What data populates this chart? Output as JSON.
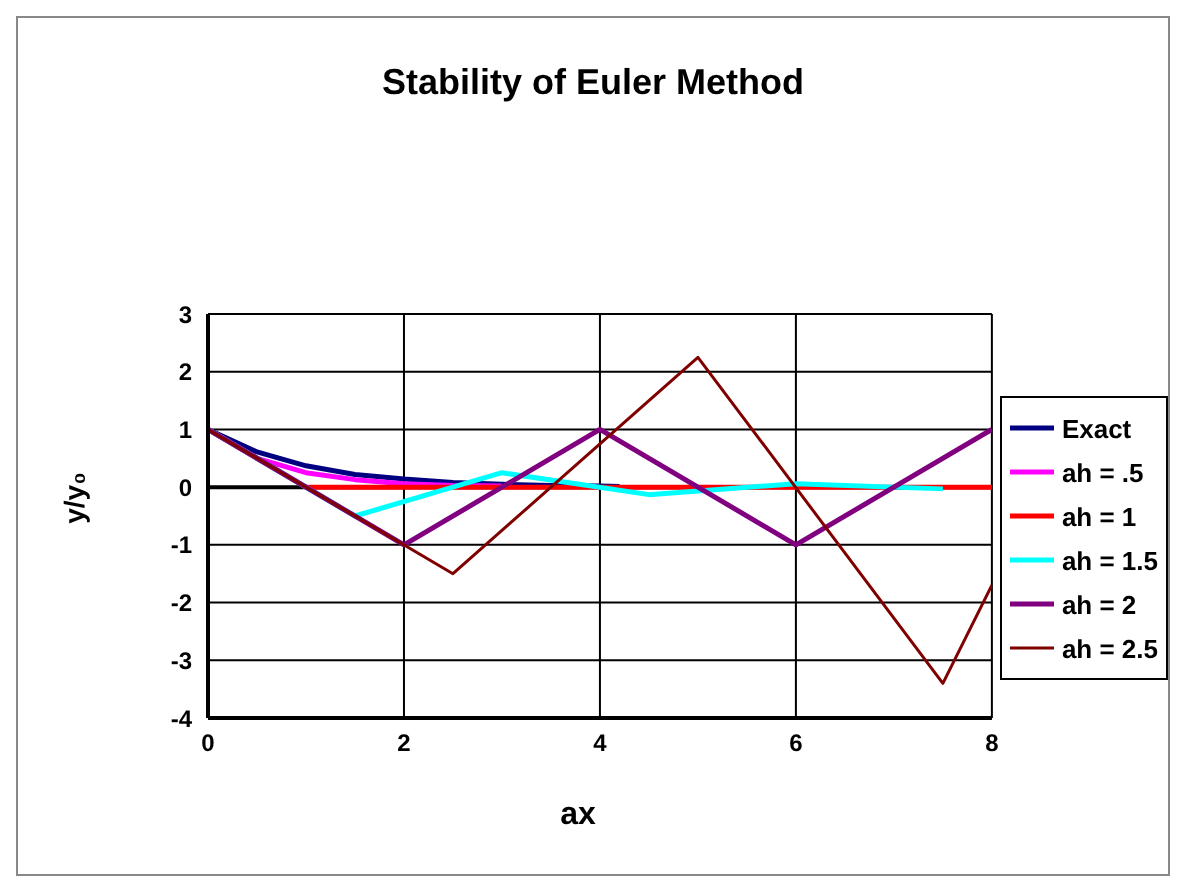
{
  "chart_data": {
    "type": "line",
    "title": "Stability of Euler Method",
    "xlabel": "ax",
    "ylabel": "y/y₀",
    "xlim": [
      0,
      8
    ],
    "xticks": [
      0,
      2,
      4,
      6,
      8
    ],
    "ylim": [
      -4,
      3
    ],
    "yticks": [
      -4,
      -3,
      -2,
      -1,
      0,
      1,
      2,
      3
    ],
    "grid": true,
    "legend": "right",
    "marker": "none",
    "line_style": "solid",
    "series": [
      {
        "name": "Exact",
        "color": "#000080",
        "x": [
          0,
          0.5,
          1,
          1.5,
          2,
          2.5,
          3,
          3.5,
          4,
          4.2
        ],
        "values": [
          1,
          0.61,
          0.37,
          0.22,
          0.14,
          0.08,
          0.05,
          0.03,
          0.02,
          0.01
        ]
      },
      {
        "name": "ah = .5",
        "color": "#ff00ff",
        "x": [
          0,
          0.5,
          1,
          1.5,
          2,
          2.5,
          3
        ],
        "values": [
          1,
          0.5,
          0.25,
          0.13,
          0.06,
          0.03,
          0.02
        ]
      },
      {
        "name": "ah = 1",
        "color": "#ff0000",
        "x": [
          0,
          1,
          2,
          3,
          4,
          5,
          6,
          7,
          8
        ],
        "values": [
          1,
          0,
          0,
          0,
          0,
          0,
          0,
          0,
          0
        ]
      },
      {
        "name": "ah = 1.5",
        "color": "#00ffff",
        "x": [
          0,
          1.5,
          3,
          4.5,
          6,
          7.5
        ],
        "values": [
          1,
          -0.5,
          0.25,
          -0.13,
          0.06,
          -0.03
        ]
      },
      {
        "name": "ah = 2",
        "color": "#800080",
        "x": [
          0,
          2,
          4,
          6,
          8
        ],
        "values": [
          1,
          -1,
          1,
          -1,
          1
        ]
      },
      {
        "name": "ah = 2.5",
        "color": "#800000",
        "x": [
          0,
          2.5,
          5,
          7.5,
          8
        ],
        "values": [
          1,
          -1.5,
          2.25,
          -3.4,
          -1.7
        ]
      }
    ]
  }
}
